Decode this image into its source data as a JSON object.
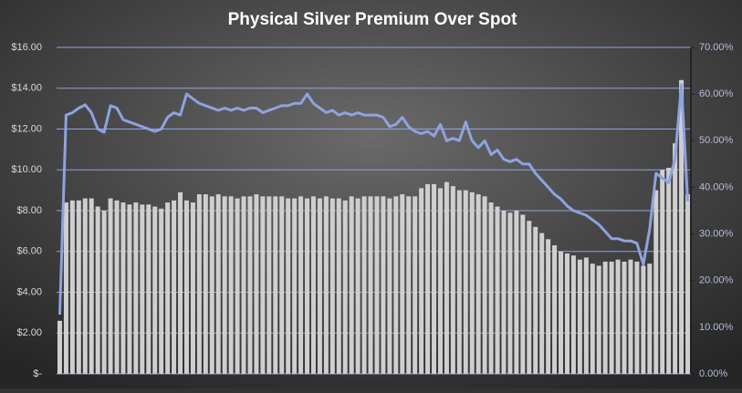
{
  "chart_data": {
    "type": "bar+line",
    "title": "Physical  Silver  Premium  Over  Spot",
    "ylim": [
      0,
      16
    ],
    "yticks": [
      {
        "value": 0,
        "label": "$-"
      },
      {
        "value": 2,
        "label": "$2.00"
      },
      {
        "value": 4,
        "label": "$4.00"
      },
      {
        "value": 6,
        "label": "$6.00"
      },
      {
        "value": 8,
        "label": "$8.00"
      },
      {
        "value": 10,
        "label": "$10.00"
      },
      {
        "value": 12,
        "label": "$12.00"
      },
      {
        "value": 14,
        "label": "$14.00"
      },
      {
        "value": 16,
        "label": "$16.00"
      }
    ],
    "y2lim": [
      0,
      70
    ],
    "y2ticks": [
      {
        "value": 0,
        "label": "0.00%"
      },
      {
        "value": 10,
        "label": "10.00%"
      },
      {
        "value": 20,
        "label": "20.00%"
      },
      {
        "value": 30,
        "label": "30.00%"
      },
      {
        "value": 40,
        "label": "40.00%"
      },
      {
        "value": 50,
        "label": "50.00%"
      },
      {
        "value": 60,
        "label": "60.00%"
      },
      {
        "value": 70,
        "label": "70.00%"
      }
    ],
    "grid": true,
    "series": [
      {
        "type": "bar",
        "color": "#cfcfcf",
        "values": [
          2.6,
          8.4,
          8.5,
          8.5,
          8.6,
          8.6,
          8.2,
          8.0,
          8.6,
          8.5,
          8.4,
          8.3,
          8.4,
          8.3,
          8.3,
          8.2,
          8.1,
          8.4,
          8.5,
          8.9,
          8.5,
          8.4,
          8.8,
          8.8,
          8.7,
          8.8,
          8.7,
          8.7,
          8.6,
          8.7,
          8.7,
          8.8,
          8.7,
          8.7,
          8.7,
          8.7,
          8.6,
          8.6,
          8.7,
          8.6,
          8.7,
          8.6,
          8.7,
          8.6,
          8.6,
          8.5,
          8.7,
          8.6,
          8.7,
          8.7,
          8.7,
          8.7,
          8.6,
          8.7,
          8.8,
          8.7,
          8.7,
          9.1,
          9.3,
          9.3,
          9.1,
          9.4,
          9.2,
          9.0,
          9.0,
          8.9,
          8.8,
          8.7,
          8.4,
          8.2,
          8.0,
          7.9,
          8.0,
          7.8,
          7.5,
          7.2,
          6.9,
          6.6,
          6.3,
          6.0,
          5.9,
          5.8,
          5.6,
          5.7,
          5.4,
          5.3,
          5.5,
          5.5,
          5.6,
          5.5,
          5.6,
          5.5,
          5.3,
          5.4,
          9.0,
          10.0,
          10.1,
          11.3,
          14.4,
          8.8
        ]
      },
      {
        "type": "line",
        "axis": "y2",
        "color": "#8fa2e0",
        "values": [
          12.7,
          55.5,
          56,
          57,
          57.7,
          56,
          52.5,
          51.8,
          57.5,
          57,
          54.5,
          54,
          53.5,
          53,
          52.5,
          52,
          52.5,
          55,
          56,
          55.5,
          60,
          59,
          58,
          57.5,
          57,
          56.5,
          57,
          56.5,
          57,
          56.5,
          57,
          57,
          56,
          56.5,
          57,
          57.5,
          57.5,
          58,
          58,
          60,
          58,
          57,
          56,
          56.5,
          55.5,
          56,
          55.5,
          56,
          55.5,
          55.5,
          55.5,
          55,
          53,
          53.5,
          55,
          53,
          52,
          51.5,
          52,
          51,
          53.5,
          50,
          50.5,
          50,
          54,
          50,
          48.5,
          50,
          47,
          48,
          46,
          45.5,
          46,
          45,
          45,
          43,
          41.5,
          40,
          38.5,
          37.5,
          36,
          35,
          34.5,
          34,
          33,
          32,
          30.5,
          29,
          29,
          28.5,
          28.5,
          28,
          23.5,
          31,
          43,
          42,
          41,
          46,
          62,
          37
        ]
      }
    ]
  }
}
